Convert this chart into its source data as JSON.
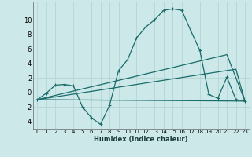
{
  "xlabel": "Humidex (Indice chaleur)",
  "background_color": "#cce8e8",
  "grid_color": "#b8d8d8",
  "line_color": "#1a6b6b",
  "xlim": [
    -0.5,
    23.5
  ],
  "ylim": [
    -5.0,
    12.5
  ],
  "yticks": [
    -4,
    -2,
    0,
    2,
    4,
    6,
    8,
    10
  ],
  "xticks": [
    0,
    1,
    2,
    3,
    4,
    5,
    6,
    7,
    8,
    9,
    10,
    11,
    12,
    13,
    14,
    15,
    16,
    17,
    18,
    19,
    20,
    21,
    22,
    23
  ],
  "series1_x": [
    0,
    1,
    2,
    3,
    4,
    5,
    6,
    7,
    8,
    9,
    10,
    11,
    12,
    13,
    14,
    15,
    16,
    17,
    18,
    19,
    20,
    21,
    22,
    23
  ],
  "series1_y": [
    -1.0,
    -0.1,
    1.0,
    1.1,
    0.9,
    -2.0,
    -3.5,
    -4.4,
    -1.8,
    3.0,
    4.5,
    7.5,
    9.0,
    10.0,
    11.3,
    11.5,
    11.3,
    8.5,
    5.8,
    -0.3,
    -0.8,
    2.1,
    -1.0,
    -1.2
  ],
  "series2_x": [
    0,
    23
  ],
  "series2_y": [
    -1.0,
    -1.2
  ],
  "series3_x": [
    0,
    22,
    23
  ],
  "series3_y": [
    -1.0,
    3.2,
    -1.2
  ],
  "series4_x": [
    0,
    21,
    23
  ],
  "series4_y": [
    -1.0,
    5.2,
    -1.2
  ]
}
